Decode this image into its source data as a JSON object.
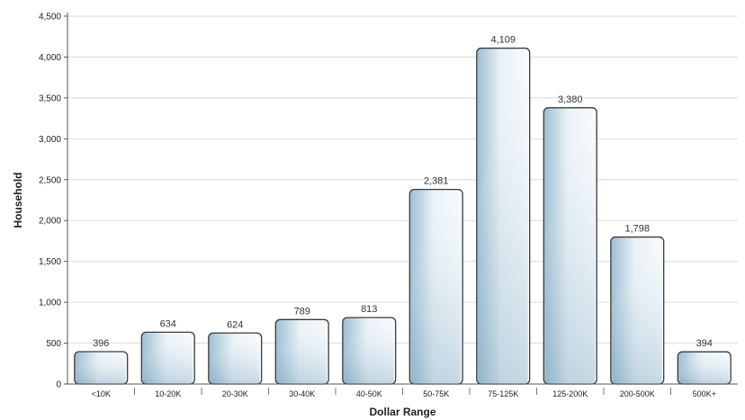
{
  "chart_data": {
    "type": "bar",
    "title": "",
    "xlabel": "Dollar Range",
    "ylabel": "Household",
    "categories": [
      "<10K",
      "10-20K",
      "20-30K",
      "30-40K",
      "40-50K",
      "50-75K",
      "75-125K",
      "125-200K",
      "200-500K",
      "500K+"
    ],
    "values": [
      396,
      634,
      624,
      789,
      813,
      2381,
      4109,
      3380,
      1798,
      394
    ],
    "ylim": [
      0,
      4500
    ],
    "yticks": [
      0,
      500,
      1000,
      1500,
      2000,
      2500,
      3000,
      3500,
      4000,
      4500
    ],
    "ytick_labels": [
      "0",
      "500",
      "1,000",
      "1,500",
      "2,000",
      "2,500",
      "3,000",
      "3,500",
      "4,000",
      "4,500"
    ],
    "data_labels": [
      "396",
      "634",
      "624",
      "789",
      "813",
      "2,381",
      "4,109",
      "3,380",
      "1,798",
      "394"
    ],
    "grid": true,
    "legend": "none",
    "bar_color": "#c9dbe6"
  }
}
